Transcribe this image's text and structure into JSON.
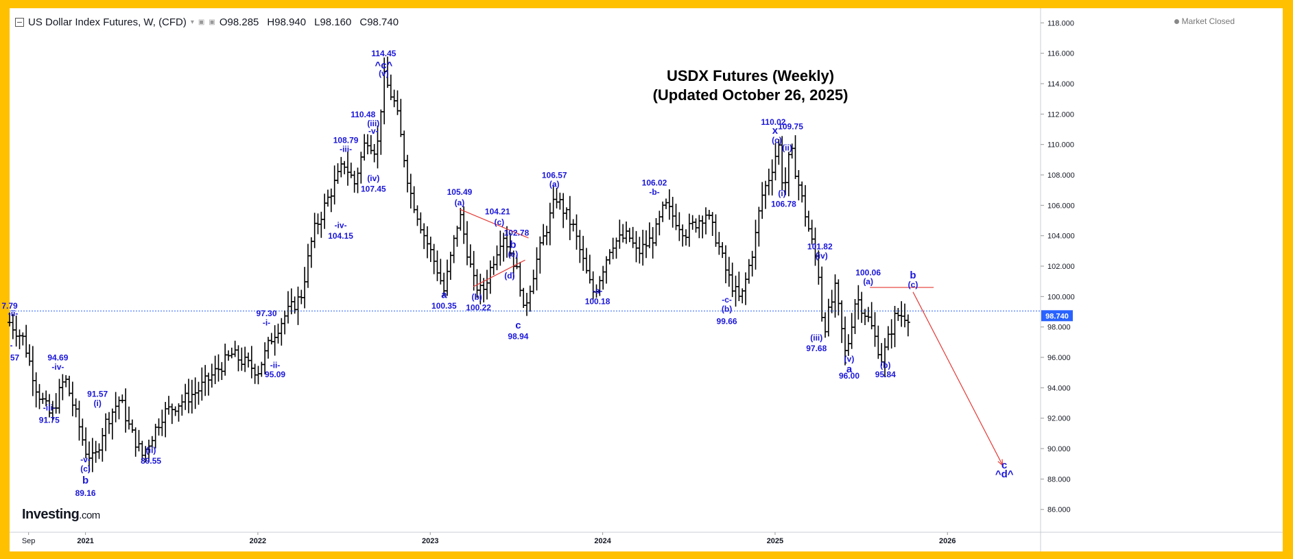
{
  "header": {
    "symbol_title": "US Dollar Index Futures, W, (CFD)",
    "dropdown_glyph": "▾",
    "ohlc": [
      {
        "label": "O",
        "value": "98.285"
      },
      {
        "label": "H",
        "value": "98.940"
      },
      {
        "label": "L",
        "value": "98.160"
      },
      {
        "label": "C",
        "value": "98.740"
      }
    ]
  },
  "market_status": "Market Closed",
  "logo": {
    "brand": "Investing",
    "suffix": ".com"
  },
  "chart_data": {
    "type": "line",
    "title": "USDX Futures (Weekly)",
    "subtitle": "(Updated October 26, 2025)",
    "ylim": [
      84.5,
      118.6
    ],
    "yticks": [
      "86.000",
      "88.000",
      "90.000",
      "92.000",
      "94.000",
      "96.000",
      "98.000",
      "100.000",
      "102.000",
      "104.000",
      "106.000",
      "108.000",
      "110.000",
      "112.000",
      "114.000",
      "116.000",
      "118.000"
    ],
    "last_price": "98.740",
    "last_price_value": 98.74,
    "xlim": [
      2020.56,
      2026.54
    ],
    "xticks": [
      {
        "t": 2020.67,
        "label": "Sep"
      },
      {
        "t": 2021.0,
        "label": "2021"
      },
      {
        "t": 2022.0,
        "label": "2022"
      },
      {
        "t": 2023.0,
        "label": "2023"
      },
      {
        "t": 2024.0,
        "label": "2024"
      },
      {
        "t": 2025.0,
        "label": "2025"
      },
      {
        "t": 2026.0,
        "label": "2026"
      }
    ],
    "price_path": [
      [
        2020.56,
        98.3
      ],
      [
        2020.64,
        97.2
      ],
      [
        2020.72,
        93.8
      ],
      [
        2020.8,
        92.1
      ],
      [
        2020.88,
        94.69
      ],
      [
        2020.96,
        91.6
      ],
      [
        2021.0,
        89.9
      ],
      [
        2021.05,
        89.16
      ],
      [
        2021.11,
        91.57
      ],
      [
        2021.2,
        93.3
      ],
      [
        2021.26,
        91.2
      ],
      [
        2021.33,
        89.55
      ],
      [
        2021.45,
        92.3
      ],
      [
        2021.65,
        93.8
      ],
      [
        2021.85,
        96.2
      ],
      [
        2022.0,
        95.09
      ],
      [
        2022.08,
        97.3
      ],
      [
        2022.16,
        98.8
      ],
      [
        2022.25,
        100.0
      ],
      [
        2022.32,
        104.15
      ],
      [
        2022.42,
        106.8
      ],
      [
        2022.5,
        108.79
      ],
      [
        2022.56,
        107.45
      ],
      [
        2022.63,
        110.48
      ],
      [
        2022.69,
        109.5
      ],
      [
        2022.73,
        114.45
      ],
      [
        2022.8,
        112.5
      ],
      [
        2022.88,
        107.0
      ],
      [
        2022.96,
        104.2
      ],
      [
        2023.04,
        101.8
      ],
      [
        2023.08,
        100.35
      ],
      [
        2023.17,
        105.49
      ],
      [
        2023.25,
        101.0
      ],
      [
        2023.3,
        100.22
      ],
      [
        2023.42,
        104.21
      ],
      [
        2023.47,
        102.78
      ],
      [
        2023.52,
        101.0
      ],
      [
        2023.54,
        98.94
      ],
      [
        2023.62,
        102.5
      ],
      [
        2023.73,
        106.57
      ],
      [
        2023.83,
        104.5
      ],
      [
        2023.92,
        101.0
      ],
      [
        2023.95,
        100.18
      ],
      [
        2024.05,
        103.5
      ],
      [
        2024.15,
        104.0
      ],
      [
        2024.2,
        102.8
      ],
      [
        2024.3,
        104.0
      ],
      [
        2024.36,
        106.02
      ],
      [
        2024.48,
        104.2
      ],
      [
        2024.6,
        105.5
      ],
      [
        2024.66,
        103.8
      ],
      [
        2024.72,
        101.5
      ],
      [
        2024.77,
        100.3
      ],
      [
        2024.8,
        99.66
      ],
      [
        2024.88,
        103.5
      ],
      [
        2024.92,
        106.5
      ],
      [
        2024.97,
        108.0
      ],
      [
        2025.02,
        110.02
      ],
      [
        2025.05,
        106.78
      ],
      [
        2025.09,
        109.75
      ],
      [
        2025.14,
        107.2
      ],
      [
        2025.2,
        104.2
      ],
      [
        2025.25,
        101.82
      ],
      [
        2025.28,
        97.68
      ],
      [
        2025.35,
        100.5
      ],
      [
        2025.41,
        96.0
      ],
      [
        2025.47,
        100.06
      ],
      [
        2025.55,
        98.3
      ],
      [
        2025.62,
        95.84
      ],
      [
        2025.7,
        98.8
      ],
      [
        2025.78,
        98.74
      ]
    ],
    "forecast_path": [
      [
        2025.8,
        100.3
      ],
      [
        2026.32,
        88.9
      ]
    ],
    "current_price_line": 99.05,
    "triangle": {
      "upper": [
        [
          2023.17,
          105.75
        ],
        [
          2023.57,
          103.85
        ]
      ],
      "lower": [
        [
          2023.25,
          100.65
        ],
        [
          2023.55,
          102.4
        ]
      ]
    },
    "projection_line": {
      "from": [
        2025.55,
        100.6
      ],
      "to": [
        2025.92,
        100.6
      ]
    },
    "labels": [
      {
        "t": 2020.56,
        "p": 99.2,
        "text": "7.79"
      },
      {
        "t": 2020.58,
        "p": 98.7,
        "text": "-ii-"
      },
      {
        "t": 2020.57,
        "p": 96.6,
        "text": "-"
      },
      {
        "t": 2020.59,
        "p": 95.8,
        "text": "57"
      },
      {
        "t": 2020.84,
        "p": 95.8,
        "text": "94.69"
      },
      {
        "t": 2020.84,
        "p": 95.2,
        "text": "-iv-"
      },
      {
        "t": 2020.79,
        "p": 92.5,
        "text": "-iii-"
      },
      {
        "t": 2020.79,
        "p": 91.7,
        "text": "91.75"
      },
      {
        "t": 2021.0,
        "p": 89.1,
        "text": "-v-"
      },
      {
        "t": 2021.0,
        "p": 88.5,
        "text": "(c)"
      },
      {
        "t": 2021.0,
        "p": 87.7,
        "text": "b",
        "big": true
      },
      {
        "t": 2021.0,
        "p": 86.9,
        "text": "89.16"
      },
      {
        "t": 2021.07,
        "p": 93.4,
        "text": "91.57"
      },
      {
        "t": 2021.07,
        "p": 92.8,
        "text": "(i)"
      },
      {
        "t": 2021.38,
        "p": 89.7,
        "text": "(ii)"
      },
      {
        "t": 2021.38,
        "p": 89.0,
        "text": "89.55"
      },
      {
        "t": 2022.05,
        "p": 98.7,
        "text": "97.30"
      },
      {
        "t": 2022.05,
        "p": 98.1,
        "text": "-i-"
      },
      {
        "t": 2022.1,
        "p": 95.3,
        "text": "-ii-"
      },
      {
        "t": 2022.1,
        "p": 94.7,
        "text": "95.09"
      },
      {
        "t": 2022.51,
        "p": 110.1,
        "text": "108.79"
      },
      {
        "t": 2022.51,
        "p": 109.5,
        "text": "-iii-"
      },
      {
        "t": 2022.48,
        "p": 104.5,
        "text": "-iv-"
      },
      {
        "t": 2022.48,
        "p": 103.8,
        "text": "104.15"
      },
      {
        "t": 2022.61,
        "p": 111.8,
        "text": "110.48"
      },
      {
        "t": 2022.67,
        "p": 111.2,
        "text": "(iii)"
      },
      {
        "t": 2022.67,
        "p": 110.7,
        "text": "-v-"
      },
      {
        "t": 2022.67,
        "p": 107.6,
        "text": "(iv)"
      },
      {
        "t": 2022.67,
        "p": 106.9,
        "text": "107.45"
      },
      {
        "t": 2022.73,
        "p": 115.8,
        "text": "114.45"
      },
      {
        "t": 2022.73,
        "p": 115.0,
        "text": "^c^",
        "big": true
      },
      {
        "t": 2022.73,
        "p": 114.5,
        "text": "(v)"
      },
      {
        "t": 2023.08,
        "p": 99.9,
        "text": "a",
        "big": true
      },
      {
        "t": 2023.08,
        "p": 99.2,
        "text": "100.35"
      },
      {
        "t": 2023.17,
        "p": 106.7,
        "text": "105.49"
      },
      {
        "t": 2023.17,
        "p": 106.0,
        "text": "(a)"
      },
      {
        "t": 2023.27,
        "p": 99.8,
        "text": "(b)"
      },
      {
        "t": 2023.28,
        "p": 99.1,
        "text": "100.22"
      },
      {
        "t": 2023.39,
        "p": 105.4,
        "text": "104.21"
      },
      {
        "t": 2023.4,
        "p": 104.7,
        "text": "(c)"
      },
      {
        "t": 2023.5,
        "p": 104.0,
        "text": "102.78"
      },
      {
        "t": 2023.48,
        "p": 103.2,
        "text": "b",
        "big": true
      },
      {
        "t": 2023.48,
        "p": 102.6,
        "text": "(e)"
      },
      {
        "t": 2023.46,
        "p": 101.2,
        "text": "(d)"
      },
      {
        "t": 2023.51,
        "p": 97.9,
        "text": "c",
        "big": true
      },
      {
        "t": 2023.51,
        "p": 97.2,
        "text": "98.94"
      },
      {
        "t": 2023.72,
        "p": 107.8,
        "text": "106.57"
      },
      {
        "t": 2023.72,
        "p": 107.2,
        "text": "(a)"
      },
      {
        "t": 2023.97,
        "p": 100.2,
        "text": "-a-"
      },
      {
        "t": 2023.97,
        "p": 99.5,
        "text": "100.18"
      },
      {
        "t": 2024.3,
        "p": 107.3,
        "text": "106.02"
      },
      {
        "t": 2024.3,
        "p": 106.7,
        "text": "-b-"
      },
      {
        "t": 2024.72,
        "p": 99.6,
        "text": "-c-"
      },
      {
        "t": 2024.72,
        "p": 99.0,
        "text": "(b)"
      },
      {
        "t": 2024.72,
        "p": 98.2,
        "text": "99.66"
      },
      {
        "t": 2024.99,
        "p": 111.3,
        "text": "110.02"
      },
      {
        "t": 2025.0,
        "p": 110.7,
        "text": "x",
        "big": true
      },
      {
        "t": 2025.01,
        "p": 110.1,
        "text": "(c)"
      },
      {
        "t": 2025.09,
        "p": 111.0,
        "text": "109.75"
      },
      {
        "t": 2025.07,
        "p": 109.6,
        "text": "(ii)"
      },
      {
        "t": 2025.04,
        "p": 106.6,
        "text": "(i)"
      },
      {
        "t": 2025.05,
        "p": 105.9,
        "text": "106.78"
      },
      {
        "t": 2025.26,
        "p": 103.1,
        "text": "101.82"
      },
      {
        "t": 2025.27,
        "p": 102.5,
        "text": "(iv)"
      },
      {
        "t": 2025.24,
        "p": 97.1,
        "text": "(iii)"
      },
      {
        "t": 2025.24,
        "p": 96.4,
        "text": "97.68"
      },
      {
        "t": 2025.43,
        "p": 95.7,
        "text": "(v)"
      },
      {
        "t": 2025.43,
        "p": 95.0,
        "text": "a",
        "big": true
      },
      {
        "t": 2025.43,
        "p": 94.6,
        "text": "96.00"
      },
      {
        "t": 2025.54,
        "p": 101.4,
        "text": "100.06"
      },
      {
        "t": 2025.54,
        "p": 100.8,
        "text": "(a)"
      },
      {
        "t": 2025.64,
        "p": 95.3,
        "text": "(b)"
      },
      {
        "t": 2025.64,
        "p": 94.7,
        "text": "95.84"
      },
      {
        "t": 2025.8,
        "p": 101.2,
        "text": "b",
        "big": true
      },
      {
        "t": 2025.8,
        "p": 100.6,
        "text": "(c)"
      },
      {
        "t": 2026.33,
        "p": 88.7,
        "text": "c",
        "big": true
      },
      {
        "t": 2026.33,
        "p": 88.1,
        "text": "^d^",
        "big": true
      }
    ]
  },
  "colors": {
    "background": "#ffffff",
    "frame": "#FFC000",
    "bars": "#000000",
    "wave_labels": "#1a16d9",
    "trendlines": "#e53935",
    "current_price_line": "#2962ff",
    "price_tag": "#2962ff",
    "axis_text": "#131722"
  }
}
